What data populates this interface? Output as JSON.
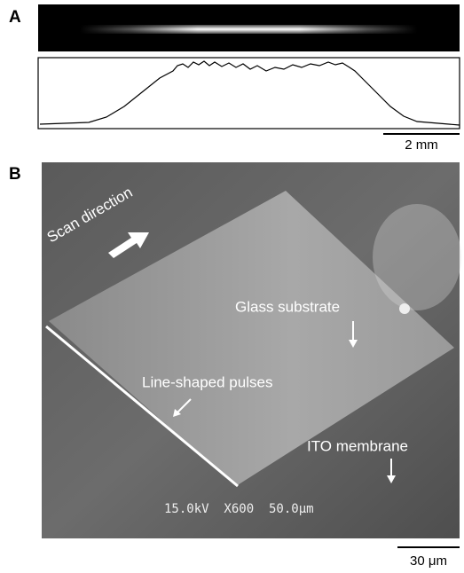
{
  "panel_a": {
    "label": "A",
    "scale_bar": "2 mm"
  },
  "panel_b": {
    "label": "B",
    "annotations": {
      "scan": "Scan direction",
      "glass": "Glass substrate",
      "pulses": "Line-shaped pulses",
      "ito": "ITO membrane"
    },
    "instrument_text": "15.0kV  X600  50.0μm",
    "scale_bar": "30 μm"
  }
}
